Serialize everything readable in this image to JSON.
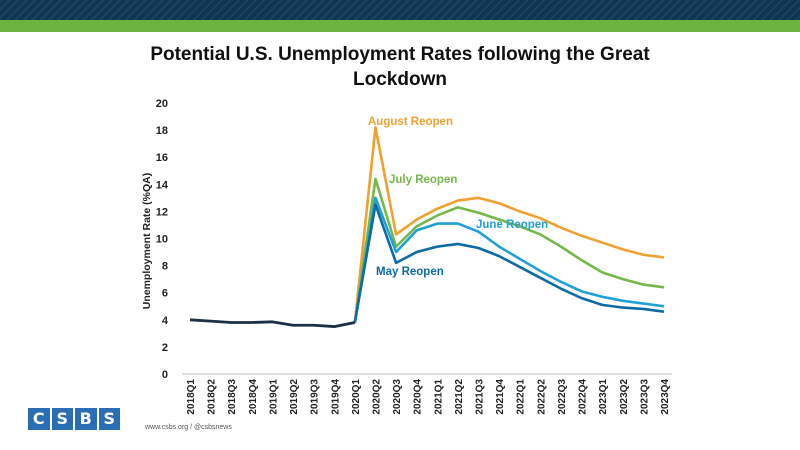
{
  "header": {
    "accent_navy": "#0f3554",
    "accent_green": "#6cb33f"
  },
  "chart_data": {
    "type": "line",
    "title": "Potential U.S. Unemployment Rates following the Great Lockdown",
    "xlabel": "",
    "ylabel": "Unemployment Rate (%QA)",
    "ylim": [
      0,
      20
    ],
    "yticks": [
      "0",
      "2",
      "4",
      "6",
      "8",
      "10",
      "12",
      "14",
      "16",
      "18",
      "20"
    ],
    "grid": false,
    "categories": [
      "2018Q1",
      "2018Q2",
      "2018Q3",
      "2018Q4",
      "2019Q1",
      "2019Q2",
      "2019Q3",
      "2019Q4",
      "2020Q1",
      "2020Q2",
      "2020Q3",
      "2020Q4",
      "2021Q1",
      "2021Q2",
      "2021Q3",
      "2021Q4",
      "2022Q1",
      "2022Q2",
      "2022Q3",
      "2022Q4",
      "2023Q1",
      "2023Q2",
      "2023Q3",
      "2023Q4"
    ],
    "historical": {
      "color": "#1b2f45",
      "values": [
        4.0,
        3.9,
        3.8,
        3.8,
        3.85,
        3.6,
        3.6,
        3.5,
        3.8
      ]
    },
    "series": [
      {
        "name": "August Reopen",
        "color": "#f0a030",
        "values": [
          null,
          null,
          null,
          null,
          null,
          null,
          null,
          null,
          3.8,
          18.2,
          10.3,
          11.4,
          12.2,
          12.8,
          13.0,
          12.6,
          12.0,
          11.5,
          10.8,
          10.2,
          9.7,
          9.2,
          8.8,
          8.6
        ]
      },
      {
        "name": "July Reopen",
        "color": "#74b84a",
        "values": [
          null,
          null,
          null,
          null,
          null,
          null,
          null,
          null,
          3.8,
          14.4,
          9.4,
          10.9,
          11.7,
          12.3,
          11.9,
          11.4,
          10.9,
          10.3,
          9.4,
          8.4,
          7.5,
          7.0,
          6.6,
          6.4
        ]
      },
      {
        "name": "June Reopen",
        "color": "#1fa0d8",
        "values": [
          null,
          null,
          null,
          null,
          null,
          null,
          null,
          null,
          3.8,
          13.0,
          9.0,
          10.6,
          11.1,
          11.1,
          10.5,
          9.4,
          8.5,
          7.6,
          6.8,
          6.1,
          5.7,
          5.4,
          5.2,
          5.0
        ]
      },
      {
        "name": "May Reopen",
        "color": "#0c6ba4",
        "values": [
          null,
          null,
          null,
          null,
          null,
          null,
          null,
          null,
          3.8,
          12.5,
          8.2,
          9.0,
          9.4,
          9.6,
          9.3,
          8.7,
          7.9,
          7.1,
          6.3,
          5.6,
          5.1,
          4.9,
          4.8,
          4.6
        ]
      }
    ]
  },
  "footer": {
    "logo_letters": [
      "C",
      "S",
      "B",
      "S"
    ],
    "site": "www.csbs.org  /  @csbsnews"
  }
}
